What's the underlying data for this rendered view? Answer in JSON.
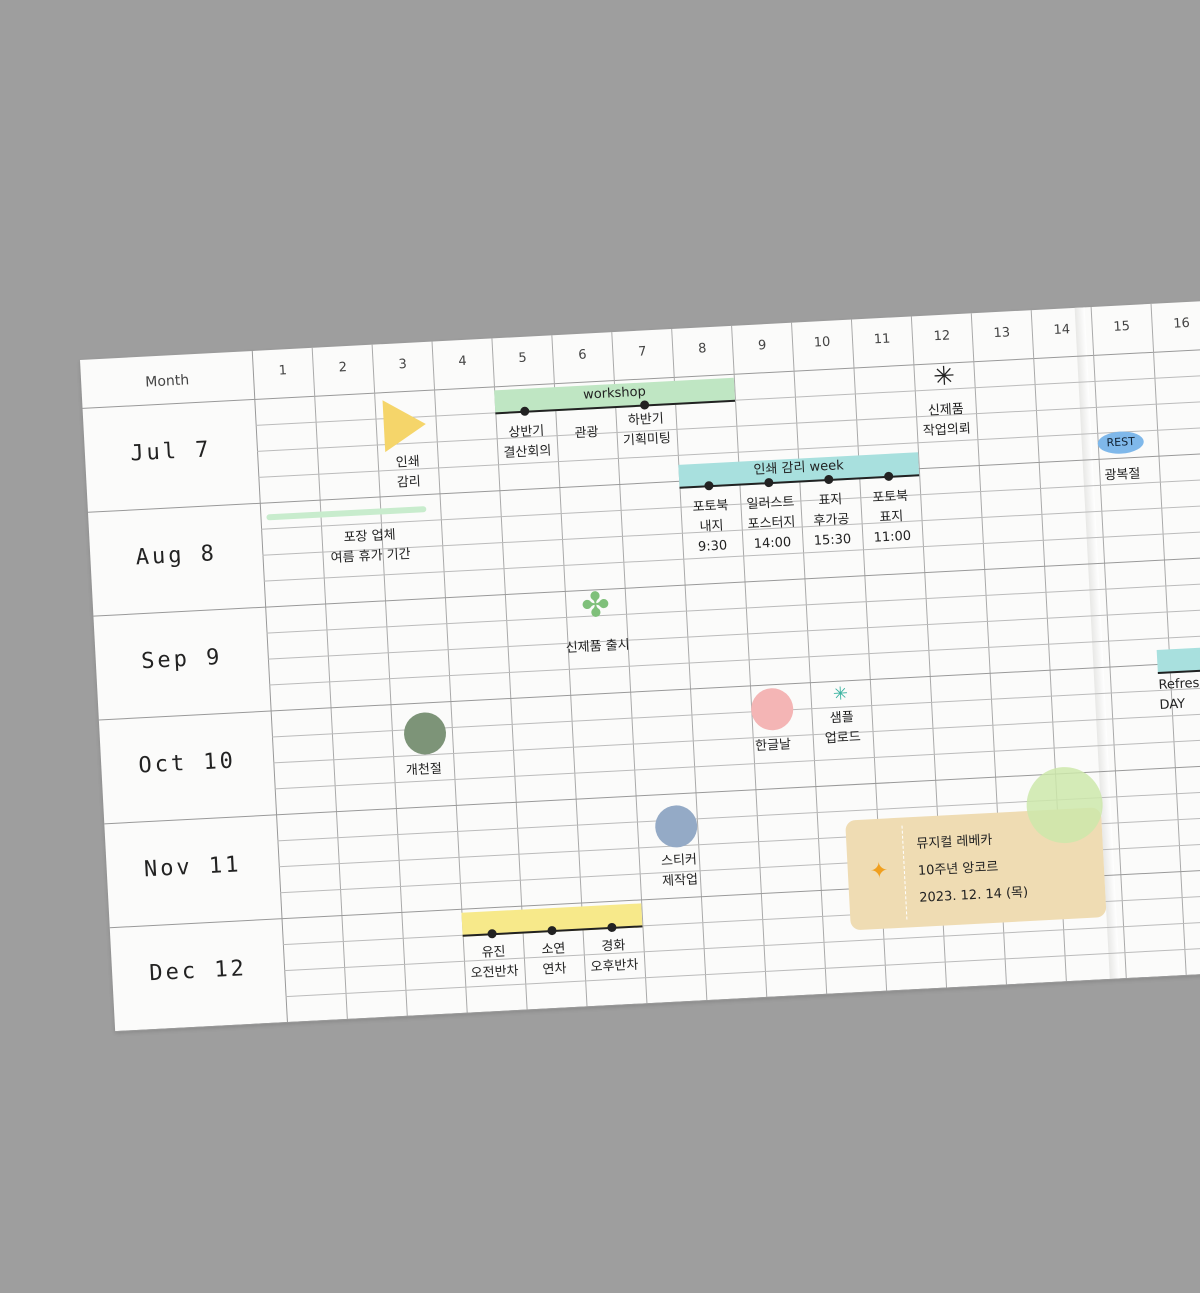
{
  "header": {
    "month_label": "Month",
    "days": [
      "1",
      "2",
      "3",
      "4",
      "5",
      "6",
      "7",
      "8",
      "9",
      "10",
      "11",
      "12",
      "13",
      "14",
      "15",
      "16"
    ]
  },
  "months": [
    "Jul 7",
    "Aug 8",
    "Sep 9",
    "Oct 10",
    "Nov 11",
    "Dec 12"
  ],
  "colors": {
    "green_tape": "#bfe6c3",
    "teal_tape": "#a8e0de",
    "yellow_tape": "#f7e98a",
    "paper": "#fbfbfa",
    "background": "#9e9e9e"
  },
  "events": {
    "workshop": "workshop",
    "jul_5": "상반기\n결산회의",
    "jul_6": "관광",
    "jul_7": "하반기\n기획미팅",
    "jul_3": "인쇄\n감리",
    "jul_12": "신제품\n작업의뢰",
    "print_week": "인쇄 감리 week",
    "rest": "REST",
    "aug_15": "광복절",
    "aug_1": "포장 업체\n여름 휴가 기간",
    "aug_8": "포토북\n내지\n9:30",
    "aug_9": "일러스트\n포스터지\n14:00",
    "aug_10": "표지\n후가공\n15:30",
    "aug_11": "포토북\n표지\n11:00",
    "sep_6": "신제품 출시",
    "refresh": "Refresh\nDAY",
    "oct_3": "개천절",
    "oct_9": "한글날",
    "oct_10": "샘플\n업로드",
    "nov_7": "스티커\n제작업",
    "ticket": "뮤지컬 레베카\n10주년 앙코르\n2023. 12. 14 (목)",
    "dec_4": "유진\n오전반차",
    "dec_5": "소연\n연차",
    "dec_6": "경화\n오후반차"
  }
}
